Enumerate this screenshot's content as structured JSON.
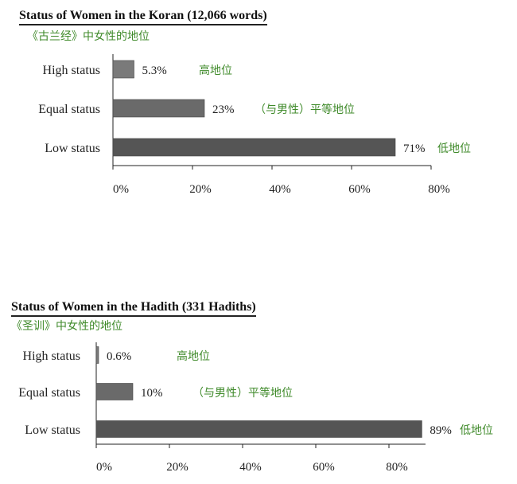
{
  "chart_data": [
    {
      "type": "bar",
      "orientation": "horizontal",
      "title": "Status of Women in the Koran (12,066 words)",
      "subtitle": "《古兰经》中女性的地位",
      "categories": [
        "High status",
        "Equal status",
        "Low status"
      ],
      "values": [
        5.3,
        23,
        71
      ],
      "value_labels": [
        "5.3%",
        "23%",
        "71%"
      ],
      "annotations": [
        "高地位",
        "（与男性）平等地位",
        "低地位"
      ],
      "xlim": [
        0,
        80
      ],
      "xticks": [
        "0%",
        "20%",
        "40%",
        "60%",
        "80%"
      ],
      "colors": [
        "#7a7a7a",
        "#6a6a6a",
        "#555555"
      ],
      "grid": false
    },
    {
      "type": "bar",
      "orientation": "horizontal",
      "title": "Status of Women in the Hadith (331 Hadiths)",
      "subtitle": "《圣训》中女性的地位",
      "categories": [
        "High status",
        "Equal status",
        "Low status"
      ],
      "values": [
        0.6,
        10,
        89
      ],
      "value_labels": [
        "0.6%",
        "10%",
        "89%"
      ],
      "annotations": [
        "高地位",
        "（与男性）平等地位",
        "低地位"
      ],
      "xlim": [
        0,
        90
      ],
      "xticks": [
        "0%",
        "20%",
        "40%",
        "60%",
        "80%"
      ],
      "colors": [
        "#7a7a7a",
        "#6a6a6a",
        "#555555"
      ],
      "grid": false
    }
  ]
}
